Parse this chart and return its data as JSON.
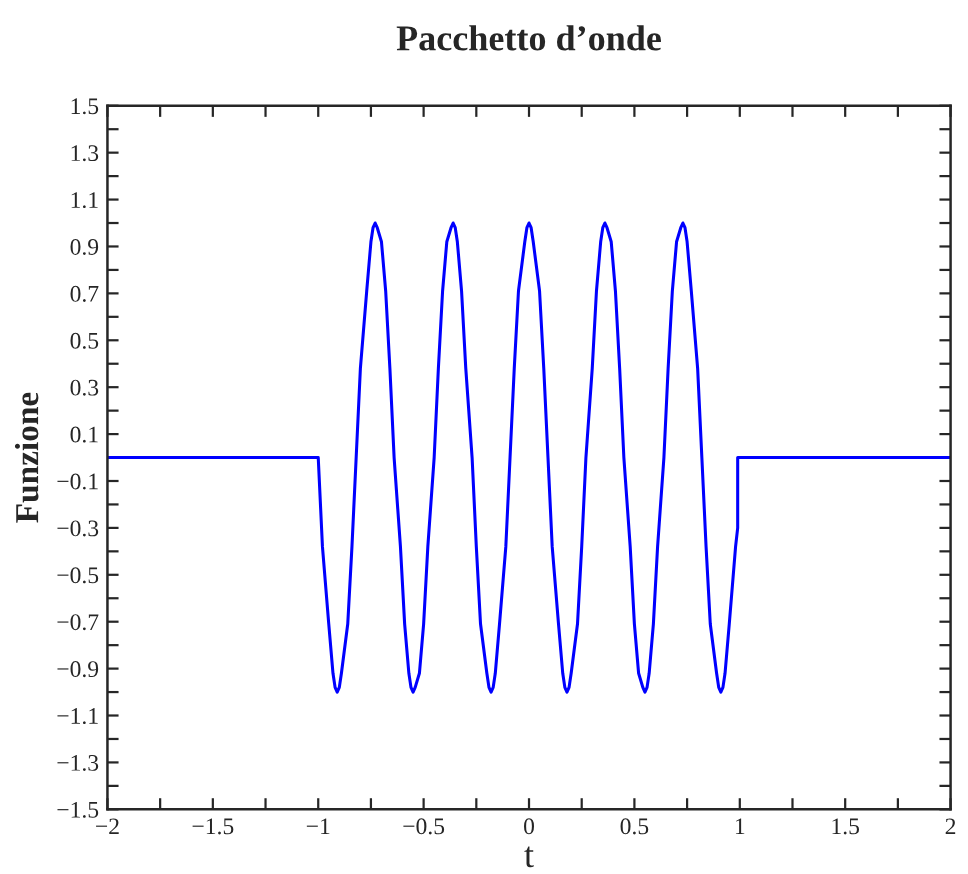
{
  "chart_data": {
    "type": "line",
    "title": "Pacchetto d’onde",
    "xlabel": "t",
    "ylabel": "Funzione",
    "xlim": [
      -2,
      2
    ],
    "ylim": [
      -1.5,
      1.5
    ],
    "xticks": [
      {
        "value": -2,
        "label": "−2"
      },
      {
        "value": -1.75,
        "label": null
      },
      {
        "value": -1.5,
        "label": "−1.5"
      },
      {
        "value": -1.25,
        "label": null
      },
      {
        "value": -1,
        "label": "−1"
      },
      {
        "value": -0.75,
        "label": null
      },
      {
        "value": -0.5,
        "label": "−0.5"
      },
      {
        "value": -0.25,
        "label": null
      },
      0,
      {
        "value": 0.25,
        "label": null
      },
      0.5,
      {
        "value": 0.75,
        "label": null
      },
      1,
      {
        "value": 1.25,
        "label": null
      },
      1.5,
      {
        "value": 1.75,
        "label": null
      },
      2
    ],
    "yticks": [
      {
        "value": -1.5,
        "label": "−1.5"
      },
      {
        "value": -1.4,
        "label": null
      },
      {
        "value": -1.3,
        "label": "−1.3"
      },
      {
        "value": -1.2,
        "label": null
      },
      {
        "value": -1.1,
        "label": "−1.1"
      },
      {
        "value": -1,
        "label": null
      },
      {
        "value": -0.9,
        "label": "−0.9"
      },
      {
        "value": -0.8,
        "label": null
      },
      {
        "value": -0.7,
        "label": "−0.7"
      },
      {
        "value": -0.6,
        "label": null
      },
      {
        "value": -0.5,
        "label": "−0.5"
      },
      {
        "value": -0.4,
        "label": null
      },
      {
        "value": -0.3,
        "label": "−0.3"
      },
      {
        "value": -0.2,
        "label": null
      },
      {
        "value": -0.1,
        "label": "−0.1"
      },
      {
        "value": 0,
        "label": null
      },
      0.1,
      {
        "value": 0.2,
        "label": null
      },
      0.3,
      {
        "value": 0.4,
        "label": null
      },
      0.5,
      {
        "value": 0.6,
        "label": null
      },
      0.7,
      {
        "value": 0.8,
        "label": null
      },
      0.9,
      {
        "value": 1,
        "label": null
      },
      1.1,
      {
        "value": 1.2,
        "label": null
      },
      1.3,
      {
        "value": 1.4,
        "label": null
      },
      1.5
    ],
    "line_style": "solid",
    "series": [
      {
        "color": "#0000ff",
        "x": [
          -2,
          -1,
          -0.98,
          -0.95,
          -0.93,
          -0.92,
          -0.91,
          -0.9,
          -0.89,
          -0.86,
          -0.84,
          -0.82,
          -0.8,
          -0.77,
          -0.75,
          -0.74,
          -0.73,
          -0.72,
          -0.7,
          -0.68,
          -0.66,
          -0.64,
          -0.61,
          -0.59,
          -0.57,
          -0.56,
          -0.55,
          -0.54,
          -0.52,
          -0.5,
          -0.48,
          -0.45,
          -0.43,
          -0.41,
          -0.39,
          -0.37,
          -0.36,
          -0.35,
          -0.34,
          -0.32,
          -0.3,
          -0.27,
          -0.25,
          -0.23,
          -0.2,
          -0.19,
          -0.18,
          -0.17,
          -0.16,
          -0.14,
          -0.11,
          -0.09,
          -0.07,
          -0.05,
          -0.02,
          -0.01,
          0,
          0.01,
          0.02,
          0.05,
          0.07,
          0.09,
          0.11,
          0.14,
          0.16,
          0.17,
          0.18,
          0.19,
          0.2,
          0.23,
          0.25,
          0.27,
          0.3,
          0.32,
          0.34,
          0.35,
          0.36,
          0.37,
          0.39,
          0.41,
          0.43,
          0.45,
          0.48,
          0.5,
          0.52,
          0.54,
          0.55,
          0.56,
          0.57,
          0.59,
          0.61,
          0.64,
          0.66,
          0.68,
          0.7,
          0.72,
          0.73,
          0.74,
          0.75,
          0.77,
          0.8,
          0.82,
          0.84,
          0.86,
          0.89,
          0.9,
          0.91,
          0.92,
          0.93,
          0.95,
          0.98,
          0.99,
          0.99,
          2
        ],
        "values": [
          0,
          0,
          -0.38,
          -0.71,
          -0.92,
          -0.98,
          -1,
          -0.98,
          -0.92,
          -0.71,
          -0.38,
          0,
          0.38,
          0.71,
          0.92,
          0.98,
          1,
          0.98,
          0.92,
          0.71,
          0.38,
          0,
          -0.38,
          -0.71,
          -0.92,
          -0.98,
          -1,
          -0.98,
          -0.92,
          -0.71,
          -0.38,
          0,
          0.38,
          0.71,
          0.92,
          0.98,
          1,
          0.98,
          0.92,
          0.71,
          0.38,
          0,
          -0.38,
          -0.71,
          -0.92,
          -0.98,
          -1,
          -0.98,
          -0.92,
          -0.71,
          -0.38,
          0,
          0.38,
          0.71,
          0.92,
          0.98,
          1,
          0.98,
          0.92,
          0.71,
          0.38,
          0,
          -0.38,
          -0.71,
          -0.92,
          -0.98,
          -1,
          -0.98,
          -0.92,
          -0.71,
          -0.38,
          0,
          0.38,
          0.71,
          0.92,
          0.98,
          1,
          0.98,
          0.92,
          0.71,
          0.38,
          0,
          -0.38,
          -0.71,
          -0.92,
          -0.98,
          -1,
          -0.98,
          -0.92,
          -0.71,
          -0.38,
          0,
          0.38,
          0.71,
          0.92,
          0.98,
          1,
          0.98,
          0.92,
          0.71,
          0.38,
          0,
          -0.38,
          -0.71,
          -0.92,
          -0.98,
          -1,
          -0.98,
          -0.92,
          -0.71,
          -0.38,
          -0.3,
          0,
          0
        ]
      }
    ]
  }
}
